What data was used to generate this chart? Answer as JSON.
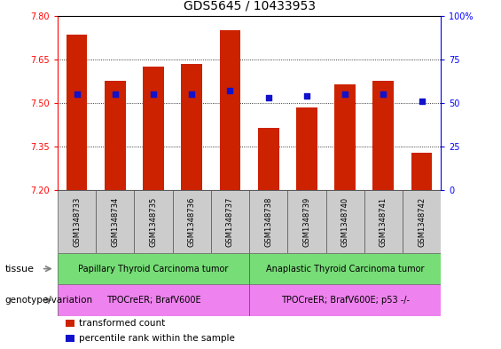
{
  "title": "GDS5645 / 10433953",
  "samples": [
    "GSM1348733",
    "GSM1348734",
    "GSM1348735",
    "GSM1348736",
    "GSM1348737",
    "GSM1348738",
    "GSM1348739",
    "GSM1348740",
    "GSM1348741",
    "GSM1348742"
  ],
  "transformed_count": [
    7.735,
    7.575,
    7.625,
    7.635,
    7.75,
    7.415,
    7.485,
    7.565,
    7.575,
    7.33
  ],
  "percentile_rank": [
    55,
    55,
    55,
    55,
    57,
    53,
    54,
    55,
    55,
    51
  ],
  "ylim": [
    7.2,
    7.8
  ],
  "yticks": [
    7.2,
    7.35,
    7.5,
    7.65,
    7.8
  ],
  "y2lim": [
    0,
    100
  ],
  "y2ticks": [
    0,
    25,
    50,
    75,
    100
  ],
  "bar_color": "#cc2200",
  "dot_color": "#1111cc",
  "tissue_groups": [
    {
      "label": "Papillary Thyroid Carcinoma tumor",
      "start": 0,
      "end": 5,
      "color": "#77dd77"
    },
    {
      "label": "Anaplastic Thyroid Carcinoma tumor",
      "start": 5,
      "end": 10,
      "color": "#77dd77"
    }
  ],
  "genotype_groups": [
    {
      "label": "TPOCreER; BrafV600E",
      "start": 0,
      "end": 5,
      "color": "#ee82ee"
    },
    {
      "label": "TPOCreER; BrafV600E; p53 -/-",
      "start": 5,
      "end": 10,
      "color": "#ee82ee"
    }
  ],
  "tissue_label": "tissue",
  "genotype_label": "genotype/variation",
  "legend_items": [
    {
      "label": "transformed count",
      "color": "#cc2200"
    },
    {
      "label": "percentile rank within the sample",
      "color": "#1111cc"
    }
  ],
  "title_fontsize": 10,
  "tick_fontsize": 7,
  "sample_fontsize": 6,
  "row_fontsize": 7,
  "legend_fontsize": 7.5,
  "bar_width": 0.55
}
